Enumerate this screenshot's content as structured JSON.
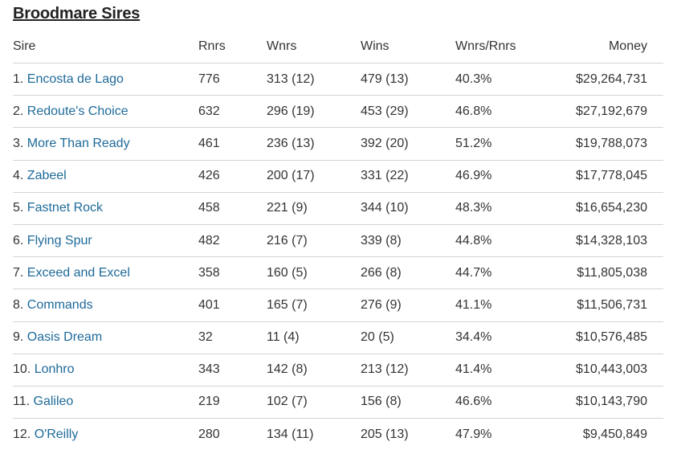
{
  "title": "Broodmare Sires",
  "columns": [
    "Sire",
    "Rnrs",
    "Wnrs",
    "Wins",
    "Wnrs/Rnrs",
    "Money"
  ],
  "colors": {
    "link": "#1e6a9a",
    "text": "#333333"
  },
  "rows": [
    {
      "rank": "1.",
      "sire": "Encosta de Lago",
      "rnrs": "776",
      "wnrs": "313 (12)",
      "wins": "479 (13)",
      "pct": "40.3%",
      "money": "$29,264,731"
    },
    {
      "rank": "2.",
      "sire": "Redoute's Choice",
      "rnrs": "632",
      "wnrs": "296 (19)",
      "wins": "453 (29)",
      "pct": "46.8%",
      "money": "$27,192,679"
    },
    {
      "rank": "3.",
      "sire": "More Than Ready",
      "rnrs": "461",
      "wnrs": "236 (13)",
      "wins": "392 (20)",
      "pct": "51.2%",
      "money": "$19,788,073"
    },
    {
      "rank": "4.",
      "sire": "Zabeel",
      "rnrs": "426",
      "wnrs": "200 (17)",
      "wins": "331 (22)",
      "pct": "46.9%",
      "money": "$17,778,045"
    },
    {
      "rank": "5.",
      "sire": "Fastnet Rock",
      "rnrs": "458",
      "wnrs": "221 (9)",
      "wins": "344 (10)",
      "pct": "48.3%",
      "money": "$16,654,230"
    },
    {
      "rank": "6.",
      "sire": "Flying Spur",
      "rnrs": "482",
      "wnrs": "216 (7)",
      "wins": "339 (8)",
      "pct": "44.8%",
      "money": "$14,328,103"
    },
    {
      "rank": "7.",
      "sire": "Exceed and Excel",
      "rnrs": "358",
      "wnrs": "160 (5)",
      "wins": "266 (8)",
      "pct": "44.7%",
      "money": "$11,805,038"
    },
    {
      "rank": "8.",
      "sire": "Commands",
      "rnrs": "401",
      "wnrs": "165 (7)",
      "wins": "276 (9)",
      "pct": "41.1%",
      "money": "$11,506,731"
    },
    {
      "rank": "9.",
      "sire": "Oasis Dream",
      "rnrs": "32",
      "wnrs": "11 (4)",
      "wins": "20 (5)",
      "pct": "34.4%",
      "money": "$10,576,485"
    },
    {
      "rank": "10.",
      "sire": "Lonhro",
      "rnrs": "343",
      "wnrs": "142 (8)",
      "wins": "213 (12)",
      "pct": "41.4%",
      "money": "$10,443,003"
    },
    {
      "rank": "11.",
      "sire": "Galileo",
      "rnrs": "219",
      "wnrs": "102 (7)",
      "wins": "156 (8)",
      "pct": "46.6%",
      "money": "$10,143,790"
    },
    {
      "rank": "12.",
      "sire": "O'Reilly",
      "rnrs": "280",
      "wnrs": "134 (11)",
      "wins": "205 (13)",
      "pct": "47.9%",
      "money": "$9,450,849"
    }
  ]
}
